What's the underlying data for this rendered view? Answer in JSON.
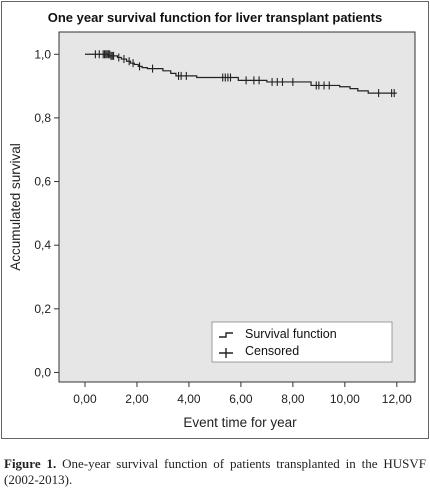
{
  "chart_data": {
    "type": "line",
    "title": "One year survival function for liver transplant patients",
    "xlabel": "Event time for year",
    "ylabel": "Accumulated survival",
    "xlim": [
      -1,
      12.7
    ],
    "ylim": [
      -0.03,
      1.07
    ],
    "x_ticks": [
      0,
      2,
      4,
      6,
      8,
      10,
      12
    ],
    "x_tick_labels": [
      "0,00",
      "2,00",
      "4,00",
      "6,00",
      "8,00",
      "10,00",
      "12,00"
    ],
    "y_ticks": [
      0,
      0.2,
      0.4,
      0.6,
      0.8,
      1.0
    ],
    "y_tick_labels": [
      "0,0",
      "0,2",
      "0,4",
      "0,6",
      "0,8",
      "1,0"
    ],
    "grid": false,
    "legend_position": "bottom-right",
    "series": [
      {
        "name": "Survival function",
        "color": "#222222",
        "x": [
          0,
          0.9,
          1.25,
          1.4,
          1.6,
          1.75,
          1.9,
          2.05,
          2.2,
          2.4,
          3.0,
          3.3,
          3.5,
          4.3,
          5.9,
          7.0,
          8.7,
          9.8,
          10.2,
          10.5,
          10.9,
          12.0
        ],
        "y": [
          1.0,
          0.995,
          0.99,
          0.985,
          0.978,
          0.972,
          0.968,
          0.962,
          0.958,
          0.955,
          0.948,
          0.94,
          0.932,
          0.927,
          0.918,
          0.913,
          0.902,
          0.898,
          0.892,
          0.885,
          0.878,
          0.878
        ]
      },
      {
        "name": "Censored",
        "color": "#222222",
        "x": [
          0.4,
          0.55,
          0.7,
          0.75,
          0.8,
          0.85,
          0.9,
          0.95,
          1.0,
          1.05,
          1.1,
          1.3,
          1.5,
          1.7,
          1.85,
          2.1,
          2.6,
          3.6,
          3.7,
          3.9,
          5.3,
          5.4,
          5.5,
          5.6,
          6.2,
          6.5,
          6.7,
          7.2,
          7.4,
          7.6,
          8.0,
          8.9,
          9.0,
          9.2,
          9.4,
          11.3,
          11.8,
          11.9
        ],
        "y": [
          1.0,
          1.0,
          1.0,
          1.0,
          1.0,
          1.0,
          1.0,
          1.0,
          0.995,
          0.995,
          0.995,
          0.99,
          0.985,
          0.978,
          0.972,
          0.962,
          0.955,
          0.932,
          0.932,
          0.932,
          0.927,
          0.927,
          0.927,
          0.927,
          0.918,
          0.918,
          0.918,
          0.913,
          0.913,
          0.913,
          0.913,
          0.902,
          0.902,
          0.902,
          0.902,
          0.878,
          0.878,
          0.878
        ]
      }
    ]
  },
  "caption": {
    "lead": "Figure 1.",
    "text": " One-year survival function of patients transplanted in the HUSVF (2002-2013)."
  },
  "colors": {
    "plot_background": "#e6e6e6",
    "line": "#222222"
  }
}
